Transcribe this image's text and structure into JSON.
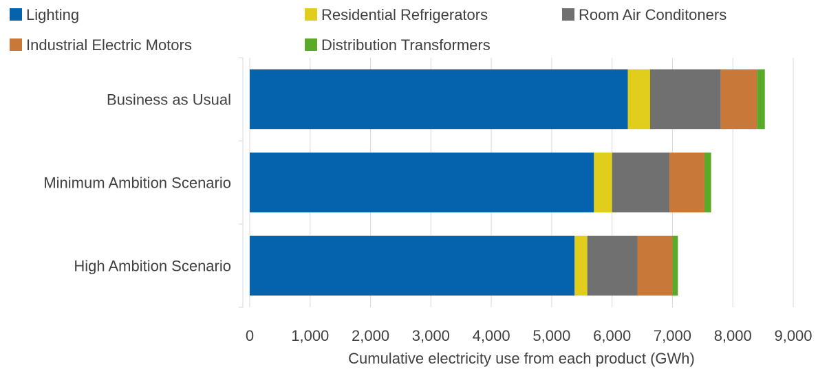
{
  "chart_data": {
    "type": "bar",
    "orientation": "horizontal",
    "stacked": true,
    "title": "",
    "xlabel": "Cumulative electricity use from each product (GWh)",
    "ylabel": "",
    "xlim": [
      0,
      9000
    ],
    "x_ticks": [
      0,
      1000,
      2000,
      3000,
      4000,
      5000,
      6000,
      7000,
      8000,
      9000
    ],
    "x_tick_labels": [
      "0",
      "1,000",
      "2,000",
      "3,000",
      "4,000",
      "5,000",
      "6,000",
      "7,000",
      "8,000",
      "9,000"
    ],
    "grid": "vertical",
    "legend_position": "top",
    "categories": [
      "Business as Usual",
      "Minimum Ambition Scenario",
      "High Ambition Scenario"
    ],
    "series": [
      {
        "name": "Lighting",
        "color": "#0563AE",
        "values": [
          6260,
          5700,
          5380
        ]
      },
      {
        "name": "Residential Refrigerators",
        "color": "#E1CD1B",
        "values": [
          370,
          300,
          210
        ]
      },
      {
        "name": "Room Air Conditoners",
        "color": "#707070",
        "values": [
          1170,
          950,
          830
        ]
      },
      {
        "name": "Industrial Electric Motors",
        "color": "#C87838",
        "values": [
          600,
          580,
          580
        ]
      },
      {
        "name": "Distribution Transformers",
        "color": "#5AAA2A",
        "values": [
          130,
          110,
          90
        ]
      }
    ]
  }
}
